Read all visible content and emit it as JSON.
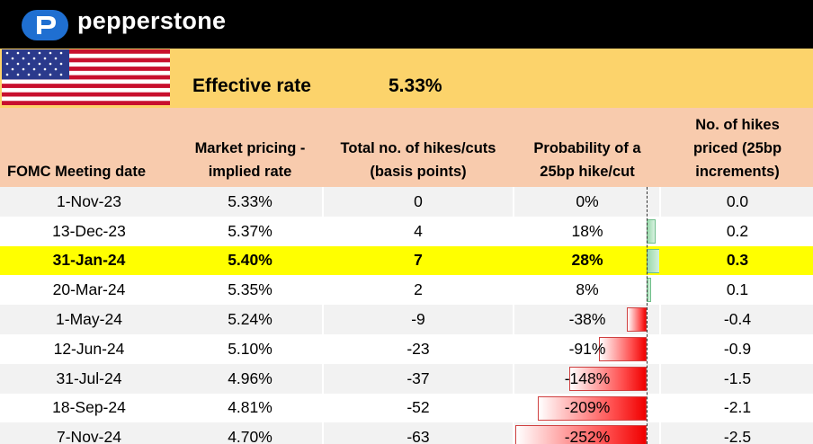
{
  "brand": {
    "name": "pepperstone"
  },
  "summary": {
    "label": "Effective rate",
    "value": "5.33%"
  },
  "table": {
    "headers": {
      "date": "FOMC Meeting date",
      "implied_line1": "Market pricing -",
      "implied_line2": "implied rate",
      "total_line1": "Total no. of hikes/cuts",
      "total_line2": "(basis points)",
      "prob_line1": "Probability of a",
      "prob_line2": "25bp hike/cut",
      "hikes_line1": "No. of hikes",
      "hikes_line2": "priced (25bp",
      "hikes_line3": "increments)"
    },
    "rows": [
      {
        "date": "1-Nov-23",
        "rate": "5.33%",
        "bp": "0",
        "prob": "0%",
        "prob_value": 0,
        "hikes": "0.0",
        "highlight": false
      },
      {
        "date": "13-Dec-23",
        "rate": "5.37%",
        "bp": "4",
        "prob": "18%",
        "prob_value": 18,
        "hikes": "0.2",
        "highlight": false
      },
      {
        "date": "31-Jan-24",
        "rate": "5.40%",
        "bp": "7",
        "prob": "28%",
        "prob_value": 28,
        "hikes": "0.3",
        "highlight": true
      },
      {
        "date": "20-Mar-24",
        "rate": "5.35%",
        "bp": "2",
        "prob": "8%",
        "prob_value": 8,
        "hikes": "0.1",
        "highlight": false
      },
      {
        "date": "1-May-24",
        "rate": "5.24%",
        "bp": "-9",
        "prob": "-38%",
        "prob_value": -38,
        "hikes": "-0.4",
        "highlight": false
      },
      {
        "date": "12-Jun-24",
        "rate": "5.10%",
        "bp": "-23",
        "prob": "-91%",
        "prob_value": -91,
        "hikes": "-0.9",
        "highlight": false
      },
      {
        "date": "31-Jul-24",
        "rate": "4.96%",
        "bp": "-37",
        "prob": "-148%",
        "prob_value": -148,
        "hikes": "-1.5",
        "highlight": false
      },
      {
        "date": "18-Sep-24",
        "rate": "4.81%",
        "bp": "-52",
        "prob": "-209%",
        "prob_value": -209,
        "hikes": "-2.1",
        "highlight": false
      },
      {
        "date": "7-Nov-24",
        "rate": "4.70%",
        "bp": "-63",
        "prob": "-252%",
        "prob_value": -252,
        "hikes": "-2.5",
        "highlight": false
      }
    ]
  },
  "colors": {
    "header_bg": "#f8cbad",
    "rate_bg": "#fcd36b",
    "highlight": "#ffff00",
    "bar_positive": "#9ad9ac",
    "bar_negative": "#ff4d4d"
  }
}
